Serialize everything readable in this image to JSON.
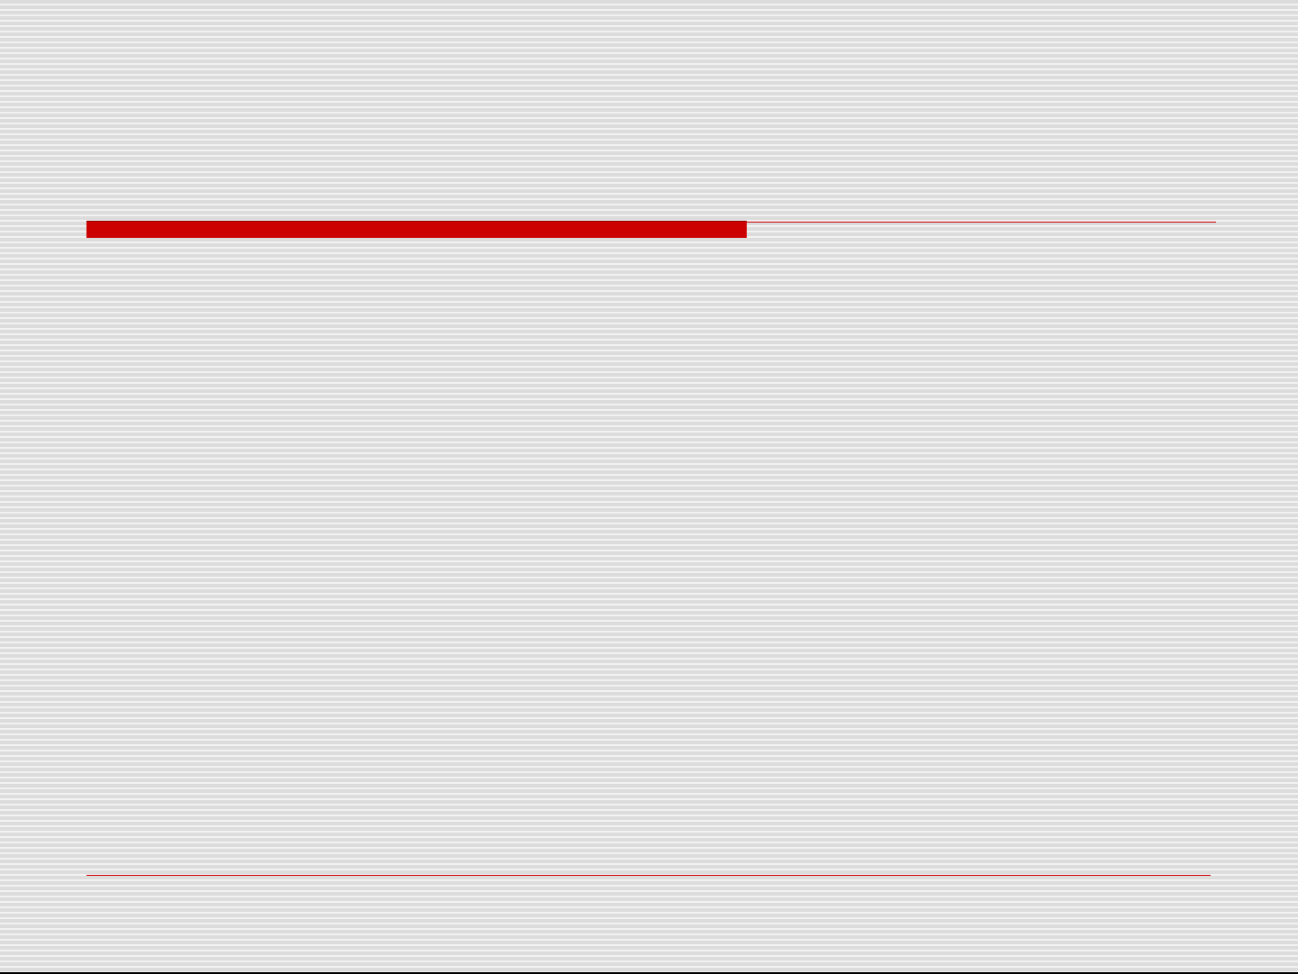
{
  "slide": {
    "title": "",
    "body": ""
  },
  "colors": {
    "accent": "#cc0000",
    "stripe_dark": "#dcdcdc",
    "stripe_light": "#f2f2f2"
  }
}
